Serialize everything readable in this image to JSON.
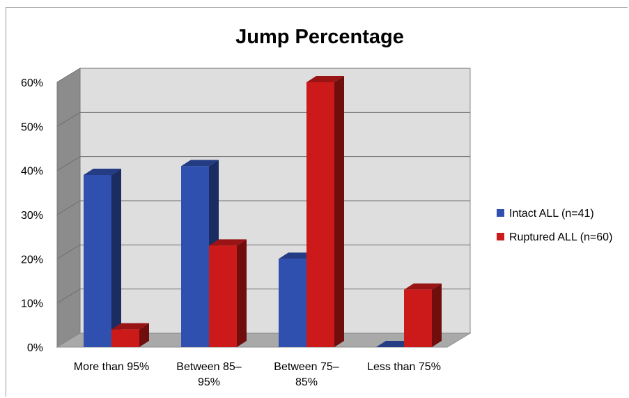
{
  "chart_data": {
    "type": "bar",
    "title": "Jump Percentage",
    "categories": [
      [
        "More than 95%"
      ],
      [
        "Between 85–",
        "95%"
      ],
      [
        "Between 75–",
        "85%"
      ],
      [
        "Less than 75%"
      ]
    ],
    "series": [
      {
        "name": "Intact ALL (n=41)",
        "color": "#3050b0",
        "values": [
          39,
          41,
          20,
          0
        ]
      },
      {
        "name": "Ruptured ALL (n=60)",
        "color": "#cc1a1a",
        "values": [
          4,
          23,
          60,
          13
        ]
      }
    ],
    "y_ticks": [
      "0%",
      "10%",
      "20%",
      "30%",
      "40%",
      "50%",
      "60%"
    ],
    "ylim": [
      0,
      60
    ],
    "ytick_values": [
      0,
      10,
      20,
      30,
      40,
      50,
      60
    ],
    "grid": true,
    "legend_position": "right",
    "three_d": true
  }
}
